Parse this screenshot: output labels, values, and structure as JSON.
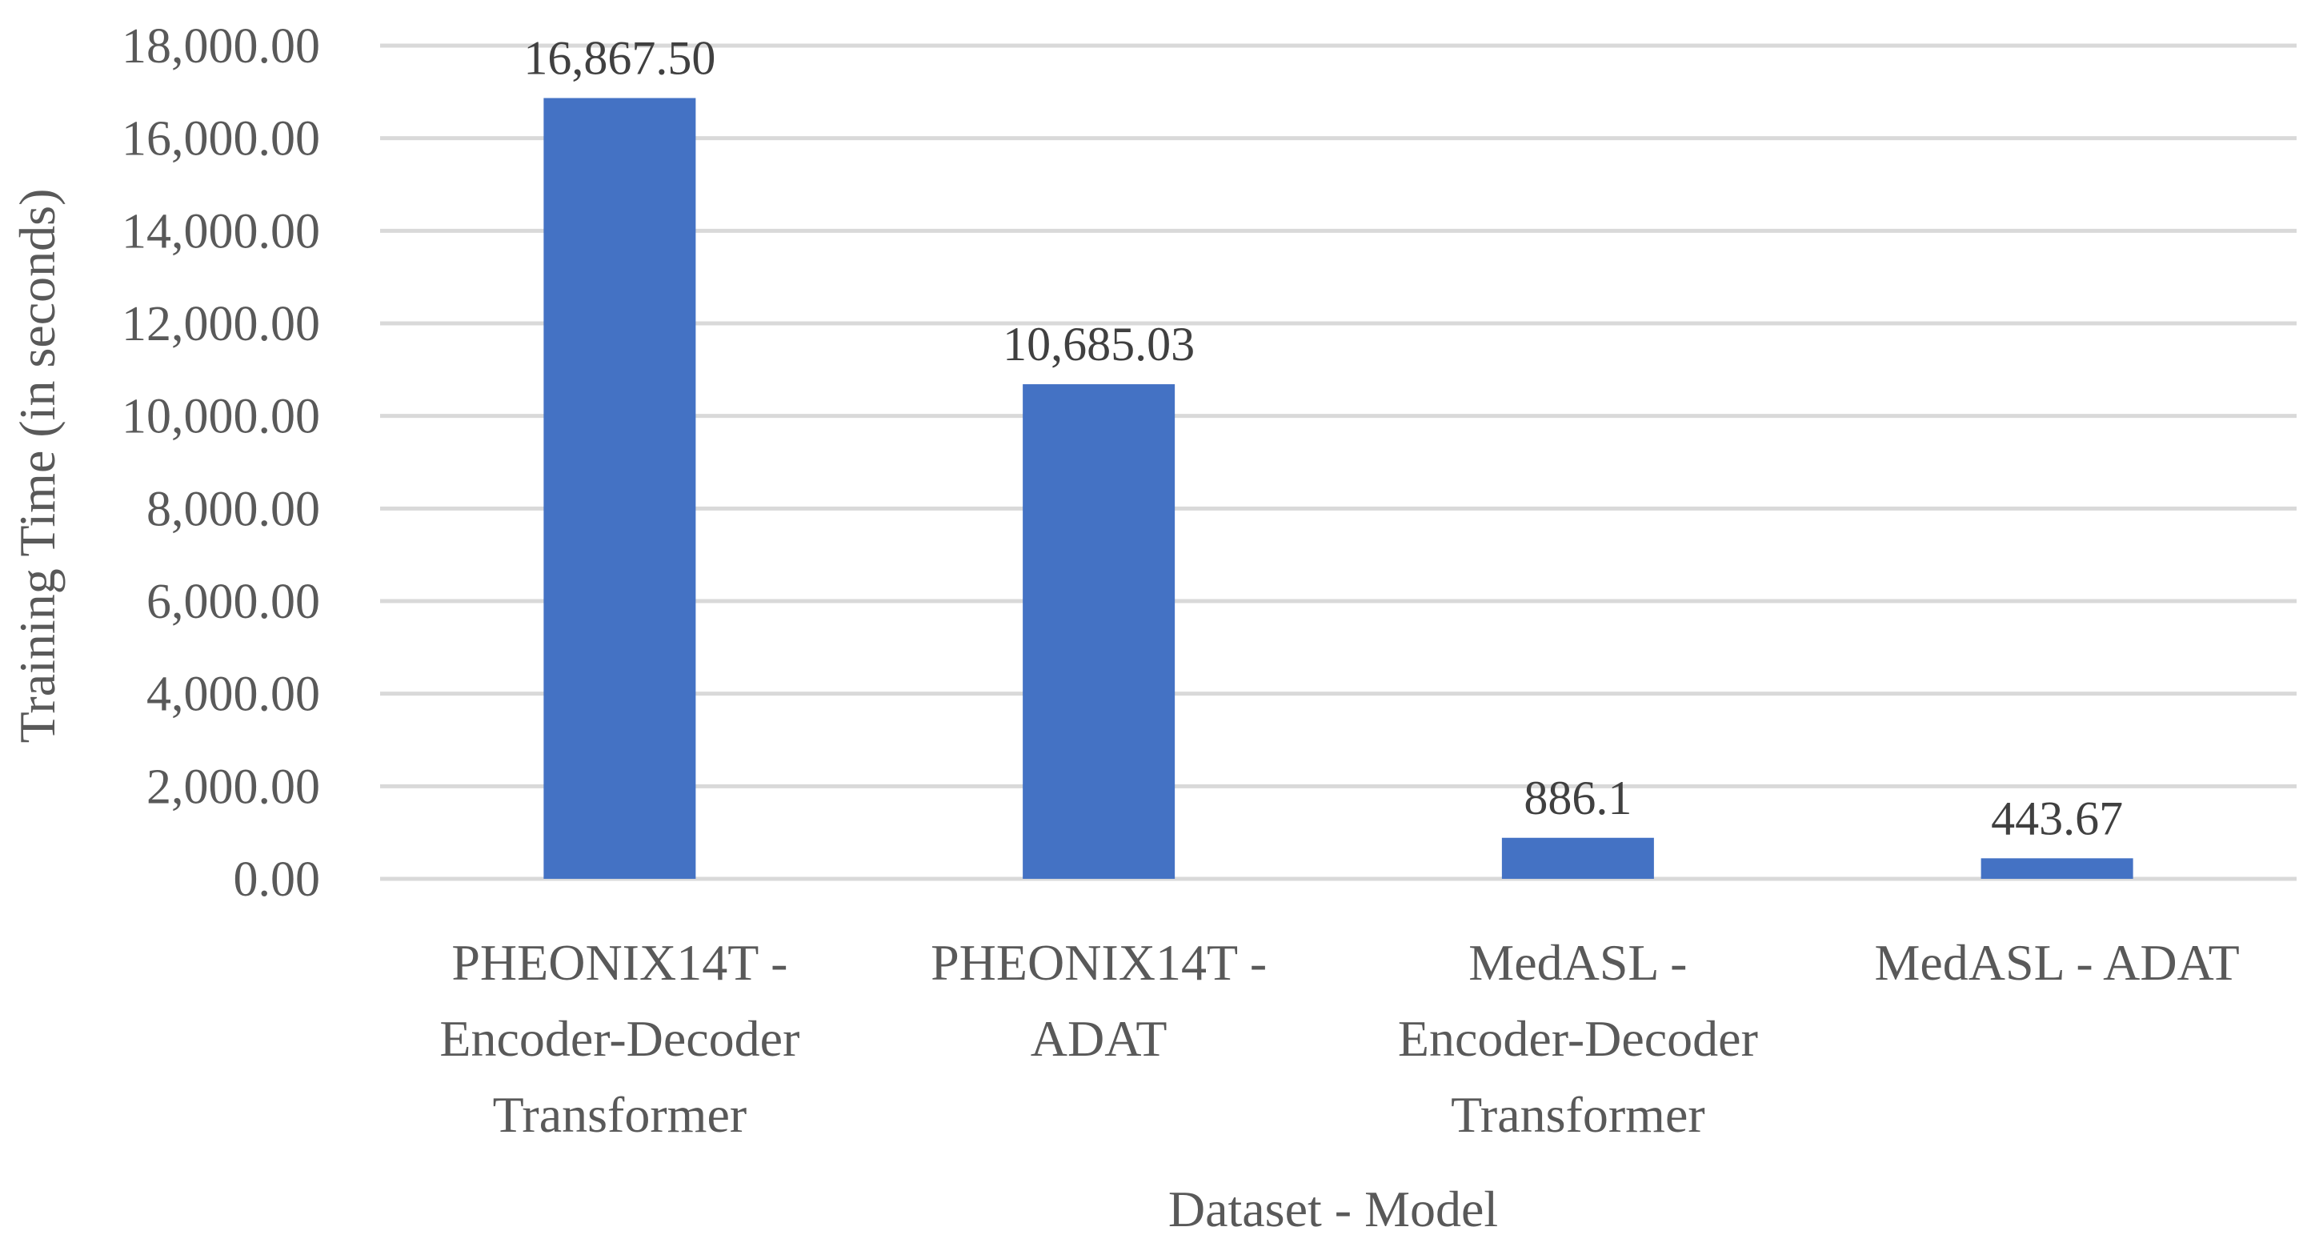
{
  "chart_data": {
    "type": "bar",
    "categories": [
      [
        "PHEONIX14T -",
        "Encoder-Decoder",
        "Transformer"
      ],
      [
        "PHEONIX14T -",
        "ADAT"
      ],
      [
        "MedASL -",
        "Encoder-Decoder",
        "Transformer"
      ],
      [
        "MedASL - ADAT"
      ]
    ],
    "values": [
      16867.5,
      10685.03,
      886.1,
      443.67
    ],
    "data_labels": [
      "16,867.50",
      "10,685.03",
      "886.1",
      "443.67"
    ],
    "title": "",
    "xlabel": "Dataset - Model",
    "ylabel": "Training Time (in seconds)",
    "ylim": [
      0,
      18000
    ],
    "yticks": [
      0,
      2000,
      4000,
      6000,
      8000,
      10000,
      12000,
      14000,
      16000,
      18000
    ],
    "ytick_labels": [
      "0.00",
      "2,000.00",
      "4,000.00",
      "6,000.00",
      "8,000.00",
      "10,000.00",
      "12,000.00",
      "14,000.00",
      "16,000.00",
      "18,000.00"
    ],
    "grid": true,
    "legend": "none",
    "bar_color": "#4472c4"
  }
}
